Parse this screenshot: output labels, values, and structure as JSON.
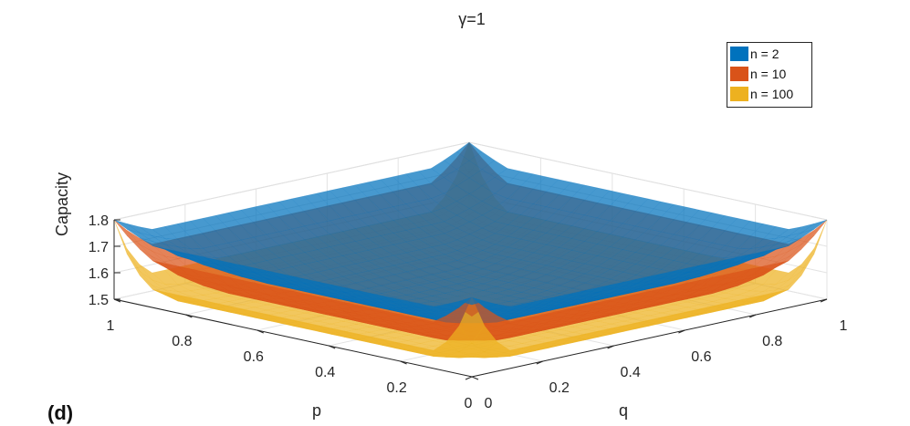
{
  "panel_label": "(d)",
  "chart_data": {
    "type": "surface",
    "title": "γ=1",
    "xlabel": "p",
    "ylabel": "q",
    "zlabel": "Capacity",
    "xlim": [
      0,
      1
    ],
    "ylim": [
      0,
      1
    ],
    "zlim": [
      1.5,
      1.8
    ],
    "x_ticks": [
      "0",
      "0.2",
      "0.4",
      "0.6",
      "0.8",
      "1"
    ],
    "y_ticks": [
      "0",
      "0.2",
      "0.4",
      "0.6",
      "0.8",
      "1"
    ],
    "z_ticks": [
      "1.5",
      "1.6",
      "1.7",
      "1.8"
    ],
    "grid": true,
    "legend_position": "top-right",
    "colors": [
      "#0072BD",
      "#D95319",
      "#EDB120"
    ],
    "series": [
      {
        "name": "n = 2",
        "color": "#0072BD",
        "corner_values": {
          "p0_q0": 1.6,
          "p1_q0": 1.8,
          "p0_q1": 1.8,
          "p1_q1": 1.8
        },
        "center_value": 1.5
      },
      {
        "name": "n = 10",
        "color": "#D95319",
        "corner_values": {
          "p0_q0": 1.6,
          "p1_q0": 1.8,
          "p0_q1": 1.8,
          "p1_q1": 1.8
        },
        "center_value": 1.5
      },
      {
        "name": "n = 100",
        "color": "#EDB120",
        "corner_values": {
          "p0_q0": 1.6,
          "p1_q0": 1.8,
          "p0_q1": 1.8,
          "p1_q1": 1.8
        },
        "center_value": 1.5
      }
    ]
  }
}
